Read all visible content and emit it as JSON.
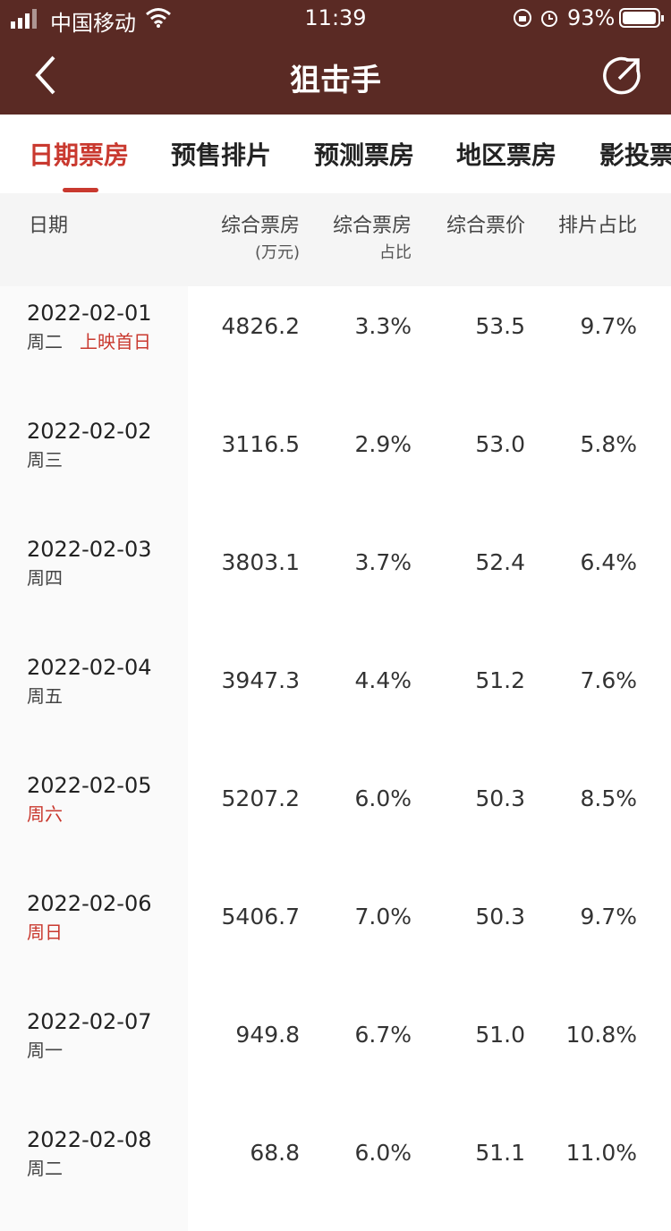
{
  "status_bar": {
    "carrier": "中国移动",
    "time": "11:39",
    "battery": "93%"
  },
  "header": {
    "title": "狙击手"
  },
  "tabs": [
    "日期票房",
    "预售排片",
    "预测票房",
    "地区票房",
    "影投票"
  ],
  "active_tab": 0,
  "table": {
    "columns": [
      {
        "title": "日期"
      },
      {
        "title": "综合票房",
        "sub": "(万元)"
      },
      {
        "title": "综合票房",
        "sub": "占比"
      },
      {
        "title": "综合票价"
      },
      {
        "title": "排片占比"
      }
    ],
    "rows": [
      {
        "date": "2022-02-01",
        "weekday": "周二",
        "tag": "上映首日",
        "highlight": false,
        "cells": [
          "4826.2",
          "3.3%",
          "53.5",
          "9.7%"
        ]
      },
      {
        "date": "2022-02-02",
        "weekday": "周三",
        "highlight": false,
        "cells": [
          "3116.5",
          "2.9%",
          "53.0",
          "5.8%"
        ]
      },
      {
        "date": "2022-02-03",
        "weekday": "周四",
        "highlight": false,
        "cells": [
          "3803.1",
          "3.7%",
          "52.4",
          "6.4%"
        ]
      },
      {
        "date": "2022-02-04",
        "weekday": "周五",
        "highlight": false,
        "cells": [
          "3947.3",
          "4.4%",
          "51.2",
          "7.6%"
        ]
      },
      {
        "date": "2022-02-05",
        "weekday": "周六",
        "highlight": true,
        "cells": [
          "5207.2",
          "6.0%",
          "50.3",
          "8.5%"
        ]
      },
      {
        "date": "2022-02-06",
        "weekday": "周日",
        "highlight": true,
        "cells": [
          "5406.7",
          "7.0%",
          "50.3",
          "9.7%"
        ]
      },
      {
        "date": "2022-02-07",
        "weekday": "周一",
        "highlight": false,
        "cells": [
          "949.8",
          "6.7%",
          "51.0",
          "10.8%"
        ]
      },
      {
        "date": "2022-02-08",
        "weekday": "周二",
        "highlight": false,
        "cells": [
          "68.8",
          "6.0%",
          "51.1",
          "11.0%"
        ]
      }
    ]
  }
}
